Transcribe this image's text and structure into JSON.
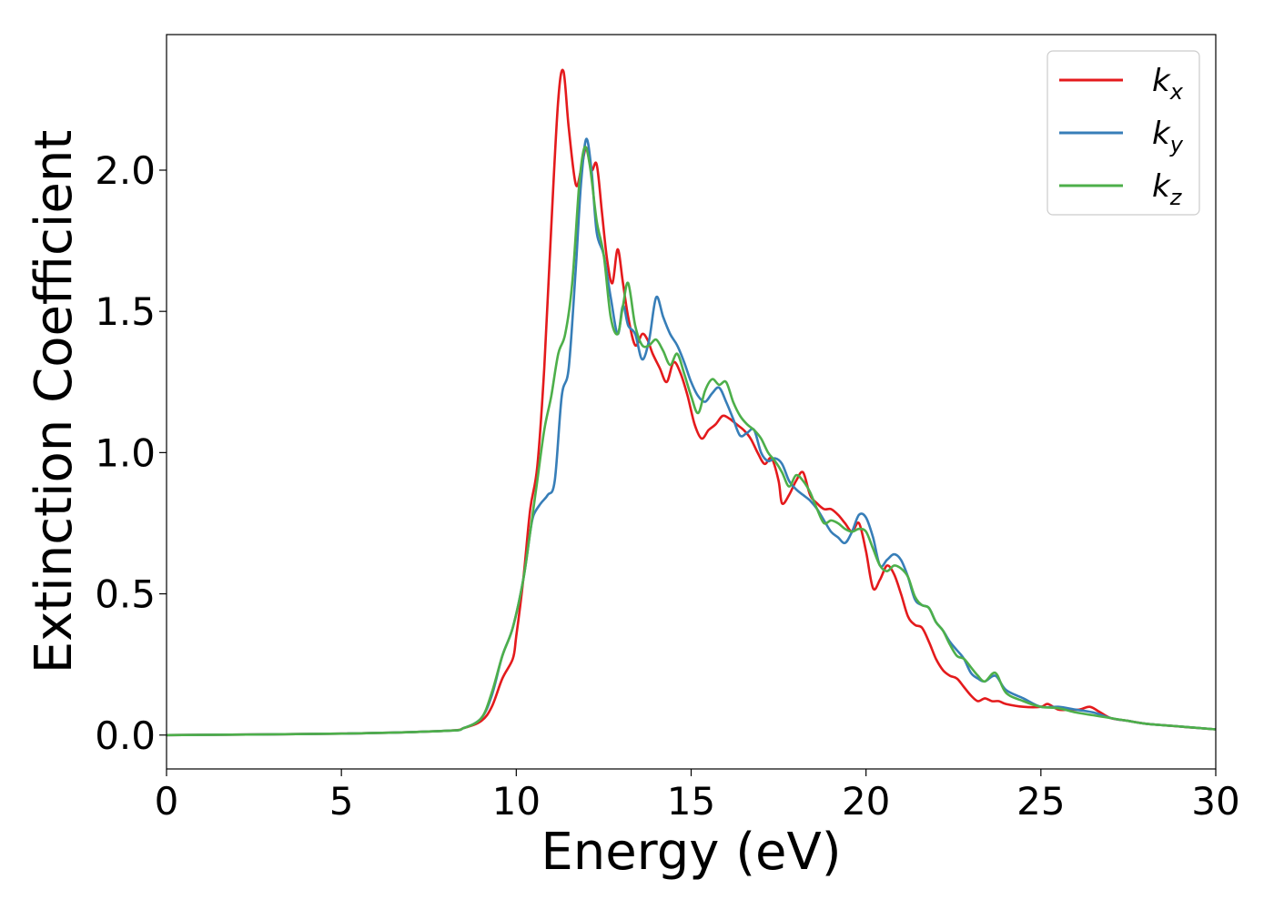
{
  "chart_data": {
    "type": "line",
    "xlabel": "Energy (eV)",
    "ylabel": "Extinction Coefficient",
    "xlim": [
      0,
      30
    ],
    "ylim": [
      -0.12,
      2.48
    ],
    "xticks": [
      0,
      5,
      10,
      15,
      20,
      25,
      30
    ],
    "xtick_labels": [
      "0",
      "5",
      "10",
      "15",
      "20",
      "25",
      "30"
    ],
    "yticks": [
      0.0,
      0.5,
      1.0,
      1.5,
      2.0
    ],
    "ytick_labels": [
      "0.0",
      "0.5",
      "1.0",
      "1.5",
      "2.0"
    ],
    "grid": false,
    "legend_position": "top-right",
    "series": [
      {
        "name": "k_x",
        "label_base": "k",
        "label_sub": "x",
        "color": "#e41a1c",
        "x": [
          0,
          5,
          8,
          8.5,
          9,
          9.3,
          9.6,
          9.9,
          10.0,
          10.2,
          10.4,
          10.6,
          10.8,
          11.0,
          11.2,
          11.35,
          11.5,
          11.7,
          11.85,
          12.0,
          12.15,
          12.3,
          12.45,
          12.6,
          12.75,
          12.9,
          13.05,
          13.2,
          13.4,
          13.6,
          13.75,
          13.9,
          14.1,
          14.3,
          14.5,
          14.7,
          14.9,
          15.1,
          15.3,
          15.5,
          15.7,
          15.9,
          16.1,
          16.3,
          16.5,
          16.7,
          16.9,
          17.1,
          17.3,
          17.5,
          17.6,
          17.8,
          18.0,
          18.2,
          18.4,
          18.6,
          18.8,
          19.0,
          19.2,
          19.4,
          19.6,
          19.8,
          20.0,
          20.2,
          20.4,
          20.6,
          20.8,
          21.0,
          21.2,
          21.4,
          21.6,
          21.8,
          22.0,
          22.2,
          22.4,
          22.6,
          22.8,
          23.0,
          23.2,
          23.4,
          23.6,
          23.8,
          24.0,
          24.5,
          25.0,
          25.2,
          25.5,
          25.8,
          26.1,
          26.4,
          26.7,
          27.0,
          27.5,
          28.0,
          28.5,
          29.0,
          29.5,
          30
        ],
        "y": [
          0.0,
          0.005,
          0.015,
          0.025,
          0.05,
          0.1,
          0.2,
          0.27,
          0.35,
          0.55,
          0.8,
          0.95,
          1.3,
          1.8,
          2.25,
          2.35,
          2.15,
          1.95,
          2.0,
          2.08,
          2.0,
          2.02,
          1.85,
          1.68,
          1.6,
          1.72,
          1.6,
          1.48,
          1.38,
          1.42,
          1.4,
          1.35,
          1.3,
          1.25,
          1.32,
          1.28,
          1.2,
          1.1,
          1.05,
          1.08,
          1.1,
          1.13,
          1.12,
          1.1,
          1.08,
          1.05,
          1.0,
          0.96,
          0.98,
          0.9,
          0.82,
          0.85,
          0.9,
          0.93,
          0.85,
          0.82,
          0.8,
          0.8,
          0.78,
          0.75,
          0.72,
          0.75,
          0.65,
          0.52,
          0.55,
          0.6,
          0.57,
          0.5,
          0.42,
          0.39,
          0.38,
          0.33,
          0.27,
          0.23,
          0.21,
          0.2,
          0.17,
          0.14,
          0.12,
          0.13,
          0.12,
          0.12,
          0.11,
          0.1,
          0.1,
          0.11,
          0.09,
          0.09,
          0.09,
          0.1,
          0.08,
          0.06,
          0.05,
          0.04,
          0.035,
          0.03,
          0.025,
          0.02
        ]
      },
      {
        "name": "k_y",
        "label_base": "k",
        "label_sub": "y",
        "color": "#377eb8",
        "x": [
          0,
          5,
          8,
          8.5,
          9,
          9.3,
          9.6,
          9.9,
          10.2,
          10.4,
          10.5,
          10.7,
          10.9,
          11.1,
          11.3,
          11.5,
          11.7,
          11.85,
          12.0,
          12.15,
          12.3,
          12.5,
          12.7,
          12.9,
          13.05,
          13.2,
          13.4,
          13.6,
          13.8,
          14.0,
          14.2,
          14.4,
          14.6,
          14.8,
          15.0,
          15.2,
          15.4,
          15.6,
          15.8,
          16.0,
          16.2,
          16.4,
          16.6,
          16.8,
          17.0,
          17.2,
          17.4,
          17.6,
          17.8,
          18.0,
          18.2,
          18.4,
          18.6,
          18.8,
          19.0,
          19.2,
          19.4,
          19.6,
          19.8,
          20.0,
          20.2,
          20.4,
          20.6,
          20.8,
          21.0,
          21.2,
          21.4,
          21.6,
          21.8,
          22.0,
          22.2,
          22.4,
          22.6,
          22.8,
          23.0,
          23.2,
          23.4,
          23.7,
          24.0,
          24.5,
          25.0,
          25.5,
          26.0,
          26.5,
          27.0,
          27.5,
          28.0,
          29.0,
          30
        ],
        "y": [
          0.0,
          0.005,
          0.015,
          0.025,
          0.06,
          0.14,
          0.28,
          0.38,
          0.55,
          0.72,
          0.78,
          0.82,
          0.85,
          0.9,
          1.2,
          1.3,
          1.65,
          1.95,
          2.11,
          2.0,
          1.78,
          1.7,
          1.55,
          1.42,
          1.52,
          1.45,
          1.42,
          1.33,
          1.4,
          1.55,
          1.48,
          1.42,
          1.38,
          1.32,
          1.25,
          1.2,
          1.18,
          1.21,
          1.23,
          1.18,
          1.12,
          1.06,
          1.07,
          1.08,
          1.0,
          0.97,
          0.98,
          0.96,
          0.9,
          0.87,
          0.85,
          0.83,
          0.8,
          0.76,
          0.72,
          0.7,
          0.68,
          0.72,
          0.78,
          0.77,
          0.7,
          0.6,
          0.62,
          0.64,
          0.62,
          0.56,
          0.48,
          0.46,
          0.45,
          0.4,
          0.37,
          0.33,
          0.3,
          0.27,
          0.22,
          0.2,
          0.19,
          0.21,
          0.16,
          0.13,
          0.1,
          0.1,
          0.09,
          0.08,
          0.06,
          0.05,
          0.04,
          0.03,
          0.02
        ]
      },
      {
        "name": "k_z",
        "label_base": "k",
        "label_sub": "z",
        "color": "#4daf4a",
        "x": [
          0,
          5,
          8,
          8.5,
          9,
          9.3,
          9.6,
          9.9,
          10.2,
          10.4,
          10.6,
          10.8,
          11.0,
          11.2,
          11.4,
          11.6,
          11.8,
          11.95,
          12.1,
          12.3,
          12.5,
          12.7,
          12.9,
          13.05,
          13.2,
          13.4,
          13.6,
          13.8,
          14.0,
          14.2,
          14.4,
          14.6,
          14.8,
          15.0,
          15.2,
          15.4,
          15.6,
          15.8,
          16.0,
          16.2,
          16.4,
          16.6,
          16.8,
          17.0,
          17.2,
          17.4,
          17.6,
          17.8,
          18.0,
          18.2,
          18.4,
          18.6,
          18.8,
          19.0,
          19.2,
          19.4,
          19.6,
          19.8,
          20.0,
          20.2,
          20.4,
          20.6,
          20.8,
          21.0,
          21.2,
          21.4,
          21.6,
          21.8,
          22.0,
          22.2,
          22.4,
          22.6,
          22.8,
          23.0,
          23.2,
          23.4,
          23.7,
          24.0,
          24.5,
          25.0,
          25.5,
          26.0,
          26.5,
          27.0,
          27.5,
          28.0,
          29.0,
          30
        ],
        "y": [
          0.0,
          0.005,
          0.015,
          0.025,
          0.06,
          0.15,
          0.28,
          0.38,
          0.55,
          0.72,
          0.9,
          1.08,
          1.2,
          1.35,
          1.42,
          1.6,
          1.95,
          2.08,
          2.02,
          1.82,
          1.7,
          1.48,
          1.42,
          1.52,
          1.6,
          1.45,
          1.38,
          1.38,
          1.4,
          1.36,
          1.31,
          1.35,
          1.28,
          1.2,
          1.14,
          1.22,
          1.26,
          1.24,
          1.25,
          1.18,
          1.13,
          1.1,
          1.08,
          1.05,
          1.0,
          0.97,
          0.93,
          0.88,
          0.92,
          0.9,
          0.86,
          0.8,
          0.75,
          0.76,
          0.75,
          0.73,
          0.72,
          0.73,
          0.72,
          0.66,
          0.6,
          0.58,
          0.6,
          0.59,
          0.56,
          0.49,
          0.46,
          0.45,
          0.4,
          0.37,
          0.32,
          0.28,
          0.27,
          0.24,
          0.21,
          0.19,
          0.22,
          0.15,
          0.12,
          0.1,
          0.095,
          0.08,
          0.07,
          0.06,
          0.05,
          0.04,
          0.03,
          0.02
        ]
      }
    ]
  }
}
